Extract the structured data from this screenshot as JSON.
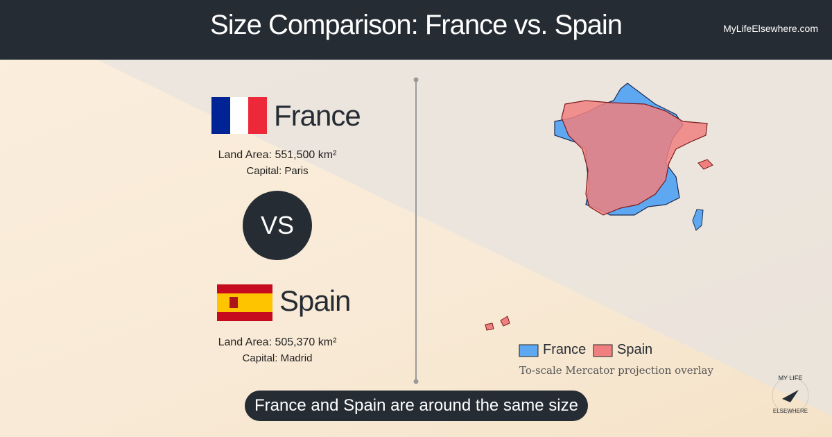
{
  "header": {
    "title": "Size Comparison: France vs. Spain",
    "site": "MyLifeElsewhere.com"
  },
  "countries": [
    {
      "name": "France",
      "land_area": "Land Area: 551,500 km²",
      "capital": "Capital: Paris"
    },
    {
      "name": "Spain",
      "land_area": "Land Area: 505,370 km²",
      "capital": "Capital: Madrid"
    }
  ],
  "versus": "VS",
  "legend": {
    "items": [
      "France",
      "Spain"
    ],
    "note": "To-scale Mercator projection overlay"
  },
  "footer": "France and Spain are around the same size",
  "logo": {
    "top": "MY LIFE",
    "bottom": "ELSEWHERE"
  }
}
